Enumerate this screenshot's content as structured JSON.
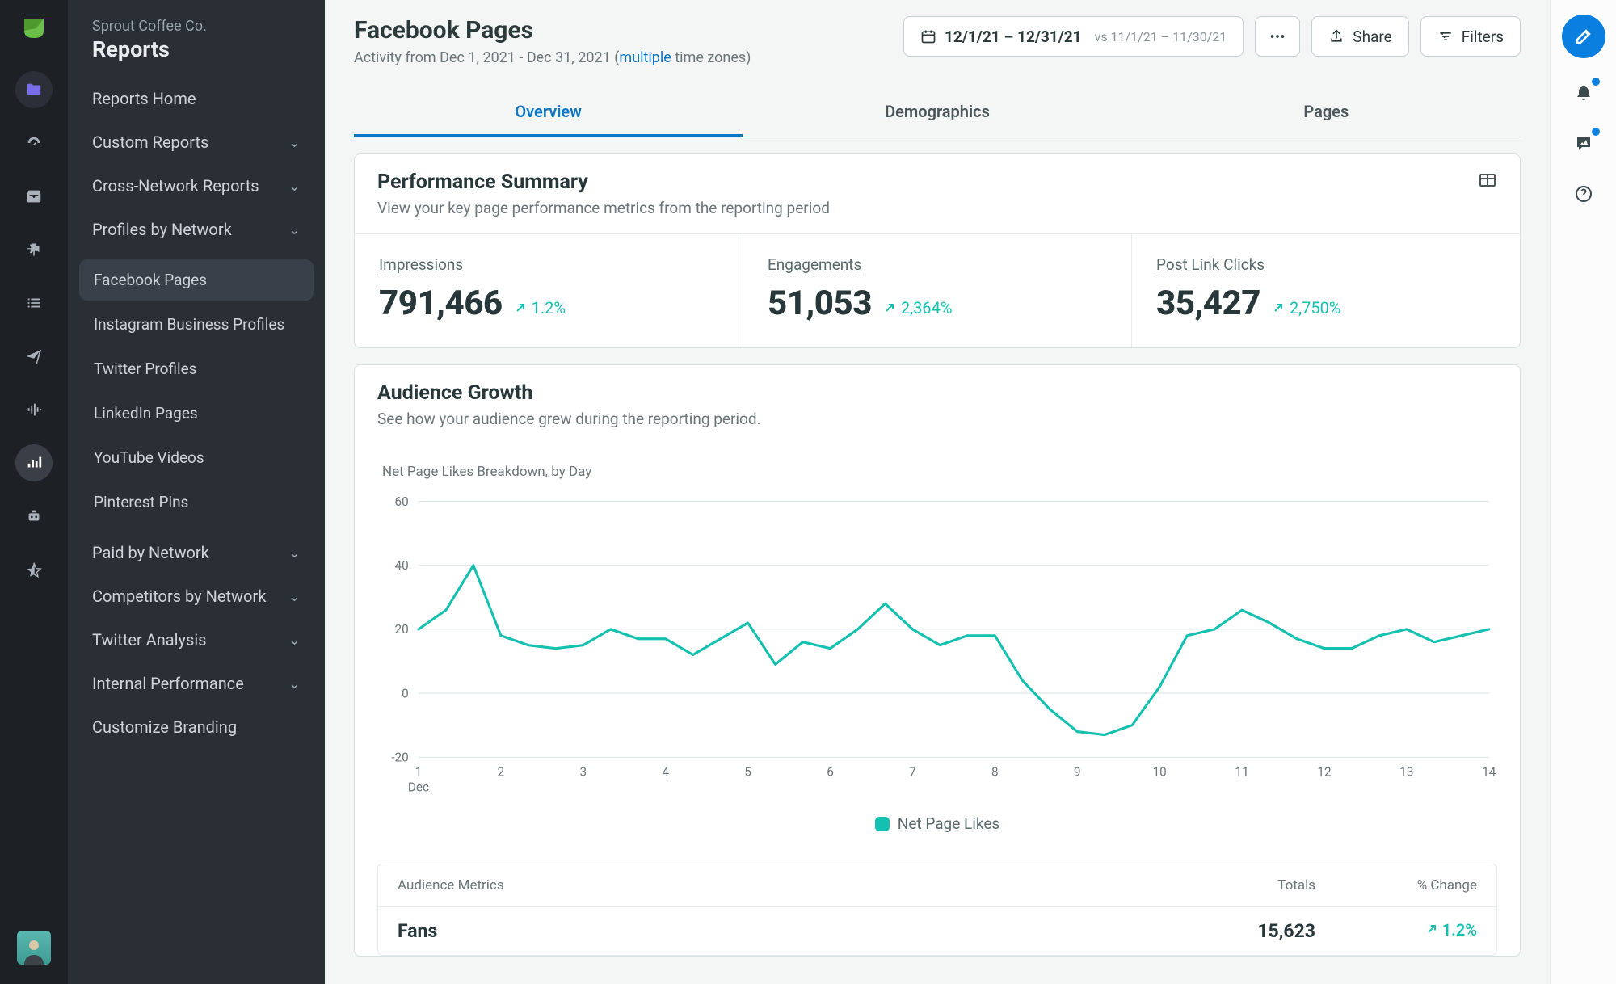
{
  "org": {
    "name": "Sprout Coffee Co.",
    "section": "Reports"
  },
  "sidebar": {
    "top": [
      {
        "label": "Reports Home",
        "expandable": false
      },
      {
        "label": "Custom Reports",
        "expandable": true
      },
      {
        "label": "Cross-Network Reports",
        "expandable": true
      },
      {
        "label": "Profiles by Network",
        "expandable": true
      }
    ],
    "profiles": [
      {
        "label": "Facebook Pages",
        "active": true
      },
      {
        "label": "Instagram Business Profiles"
      },
      {
        "label": "Twitter Profiles"
      },
      {
        "label": "LinkedIn Pages"
      },
      {
        "label": "YouTube Videos"
      },
      {
        "label": "Pinterest Pins"
      }
    ],
    "bottom": [
      {
        "label": "Paid by Network",
        "expandable": true
      },
      {
        "label": "Competitors by Network",
        "expandable": true
      },
      {
        "label": "Twitter Analysis",
        "expandable": true
      },
      {
        "label": "Internal Performance",
        "expandable": true
      },
      {
        "label": "Customize Branding",
        "expandable": false
      }
    ]
  },
  "header": {
    "title": "Facebook Pages",
    "subtitle_prefix": "Activity from Dec 1, 2021 - Dec 31, 2021 (",
    "subtitle_link": "multiple",
    "subtitle_suffix": " time zones)",
    "date_range": "12/1/21 – 12/31/21",
    "compare_range": "vs 11/1/21 – 11/30/21",
    "share_label": "Share",
    "filters_label": "Filters"
  },
  "tabs": [
    {
      "label": "Overview",
      "active": true
    },
    {
      "label": "Demographics"
    },
    {
      "label": "Pages"
    }
  ],
  "perf": {
    "title": "Performance Summary",
    "desc": "View your key page performance metrics from the reporting period",
    "metrics": [
      {
        "label": "Impressions",
        "value": "791,466",
        "delta": "1.2%"
      },
      {
        "label": "Engagements",
        "value": "51,053",
        "delta": "2,364%"
      },
      {
        "label": "Post Link Clicks",
        "value": "35,427",
        "delta": "2,750%"
      }
    ]
  },
  "growth": {
    "title": "Audience Growth",
    "desc": "See how your audience grew during the reporting period.",
    "chart": {
      "subtitle": "Net Page Likes Breakdown, by Day",
      "legend_label": "Net Page Likes",
      "type": "line",
      "y_ticks": [
        -20,
        0,
        20,
        40,
        60
      ],
      "ylim": [
        -20,
        60
      ],
      "x_labels": [
        "1",
        "2",
        "3",
        "4",
        "5",
        "6",
        "7",
        "8",
        "9",
        "10",
        "11",
        "12",
        "13",
        "14"
      ],
      "x_sublabel": "Dec",
      "series_color": "#14c0b0",
      "grid_color": "#dfe4e6",
      "axis_text_color": "#6c7578",
      "line_width": 3,
      "data": [
        20,
        26,
        40,
        18,
        15,
        14,
        15,
        20,
        17,
        17,
        12,
        17,
        22,
        9,
        16,
        14,
        20,
        28,
        20,
        15,
        18,
        18,
        4,
        -5,
        -12,
        -13,
        -10,
        2,
        18,
        20,
        26,
        22,
        17,
        14,
        14,
        18,
        20,
        16,
        18,
        20
      ]
    },
    "table": {
      "columns": [
        "Audience Metrics",
        "Totals",
        "% Change"
      ],
      "rows": [
        {
          "label": "Fans",
          "total": "15,623",
          "change": "1.2%"
        }
      ]
    }
  },
  "colors": {
    "accent_teal": "#14c0b0",
    "accent_blue": "#0a7fe0",
    "bg": "#f4f5f5",
    "rail_bg": "#1d2126",
    "nav_bg": "#2a2f36"
  }
}
